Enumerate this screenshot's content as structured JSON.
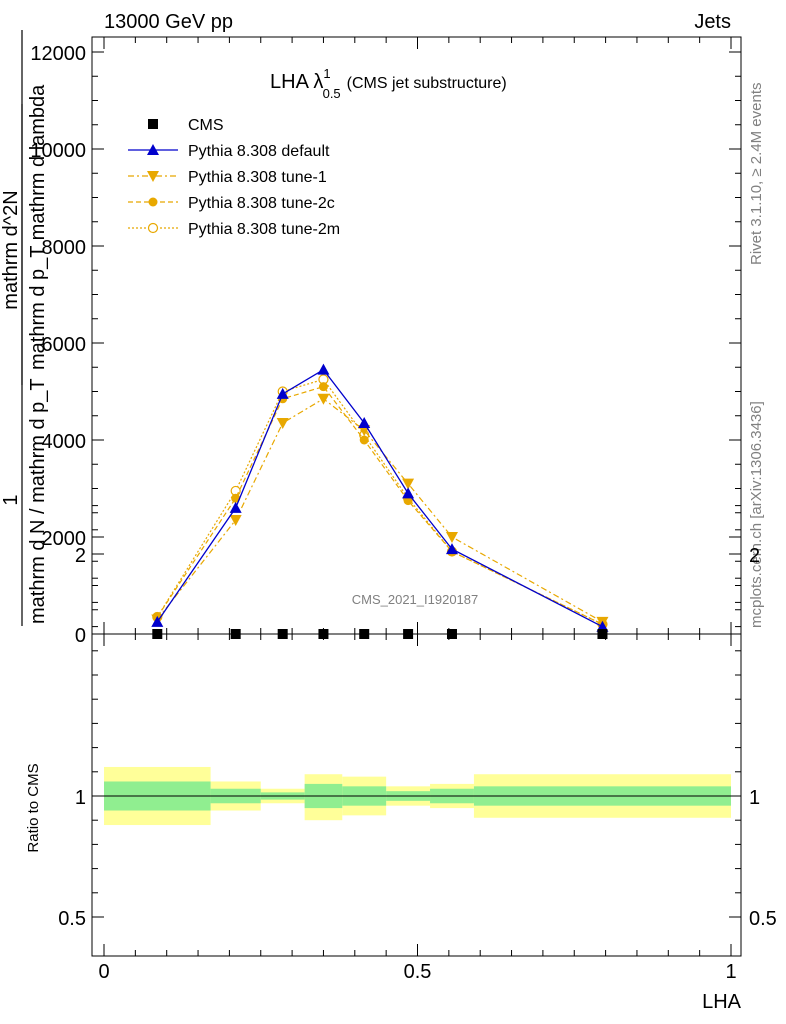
{
  "header": {
    "left": "13000 GeV pp",
    "right": "Jets"
  },
  "side": {
    "rivet": "Rivet 3.1.10, ≥ 2.4M events",
    "mcplots": "mcplots.cern.ch [arXiv:1306.3436]"
  },
  "watermark": "CMS_2021_I1920187",
  "colors": {
    "cms": "#000000",
    "default": "#0000cc",
    "tune": "#e8a800",
    "band_inner": "#90ee90",
    "band_outer": "#ffff99"
  },
  "chart_data": [
    {
      "type": "line",
      "title_main": "LHA λ",
      "title_sup": "1",
      "title_sub": "0.5",
      "title_tail": "(CMS jet substructure)",
      "ylabel_lines": [
        "1",
        "mathrm d N / mathrm d p_T",
        "mathrm d^2N",
        "mathrm d p_T mathrm d lambda"
      ],
      "xlim": [
        0,
        1
      ],
      "ylim": [
        0,
        12000
      ],
      "yticks": [
        0,
        2000,
        4000,
        6000,
        8000,
        10000,
        12000
      ],
      "ytick_labels": [
        "0",
        "2000",
        "4000",
        "6000",
        "8000",
        "10000",
        "12000"
      ],
      "legend_position": "top-left",
      "series": [
        {
          "name": "CMS",
          "marker": "square",
          "x": [
            0.085,
            0.21,
            0.285,
            0.35,
            0.415,
            0.485,
            0.555,
            0.795
          ],
          "y": [
            0,
            0,
            0,
            0,
            0,
            0,
            0,
            0
          ]
        },
        {
          "name": "Pythia 8.308 default",
          "marker": "triangle",
          "x": [
            0.085,
            0.21,
            0.285,
            0.35,
            0.415,
            0.485,
            0.555,
            0.795
          ],
          "y": [
            250,
            2600,
            4950,
            5450,
            4350,
            2900,
            1750,
            150
          ]
        },
        {
          "name": "Pythia 8.308 tune-1",
          "marker": "triangle-down",
          "x": [
            0.085,
            0.21,
            0.285,
            0.35,
            0.415,
            0.485,
            0.555,
            0.795
          ],
          "y": [
            300,
            2350,
            4350,
            4850,
            4200,
            3100,
            2000,
            250
          ]
        },
        {
          "name": "Pythia 8.308 tune-2c",
          "marker": "circle",
          "x": [
            0.085,
            0.21,
            0.285,
            0.35,
            0.415,
            0.485,
            0.555,
            0.795
          ],
          "y": [
            350,
            2800,
            4850,
            5100,
            4000,
            2750,
            1700,
            200
          ]
        },
        {
          "name": "Pythia 8.308 tune-2m",
          "marker": "circle-open",
          "x": [
            0.085,
            0.21,
            0.285,
            0.35,
            0.415,
            0.485,
            0.555,
            0.795
          ],
          "y": [
            350,
            2950,
            5000,
            5250,
            4100,
            2800,
            1700,
            200
          ]
        }
      ]
    },
    {
      "type": "area",
      "ylabel": "Ratio to CMS",
      "xlabel": "LHA",
      "xlim": [
        0,
        1
      ],
      "ylim": [
        0.35,
        2.3
      ],
      "xticks": [
        0,
        0.5,
        1
      ],
      "xtick_labels": [
        "0",
        "0.5",
        "1"
      ],
      "yticks": [
        0.5,
        1,
        2
      ],
      "ytick_labels": [
        "0.5",
        "1",
        "2"
      ],
      "bins": [
        {
          "lo": 0.0,
          "hi": 0.17,
          "inner": [
            0.94,
            1.06
          ],
          "outer": [
            0.88,
            1.12
          ]
        },
        {
          "lo": 0.17,
          "hi": 0.25,
          "inner": [
            0.97,
            1.03
          ],
          "outer": [
            0.94,
            1.06
          ]
        },
        {
          "lo": 0.25,
          "hi": 0.32,
          "inner": [
            0.985,
            1.015
          ],
          "outer": [
            0.97,
            1.03
          ]
        },
        {
          "lo": 0.32,
          "hi": 0.38,
          "inner": [
            0.95,
            1.05
          ],
          "outer": [
            0.9,
            1.09
          ]
        },
        {
          "lo": 0.38,
          "hi": 0.45,
          "inner": [
            0.96,
            1.04
          ],
          "outer": [
            0.92,
            1.08
          ]
        },
        {
          "lo": 0.45,
          "hi": 0.52,
          "inner": [
            0.98,
            1.02
          ],
          "outer": [
            0.96,
            1.04
          ]
        },
        {
          "lo": 0.52,
          "hi": 0.59,
          "inner": [
            0.97,
            1.03
          ],
          "outer": [
            0.95,
            1.05
          ]
        },
        {
          "lo": 0.59,
          "hi": 1.0,
          "inner": [
            0.96,
            1.04
          ],
          "outer": [
            0.91,
            1.09
          ]
        }
      ]
    }
  ]
}
